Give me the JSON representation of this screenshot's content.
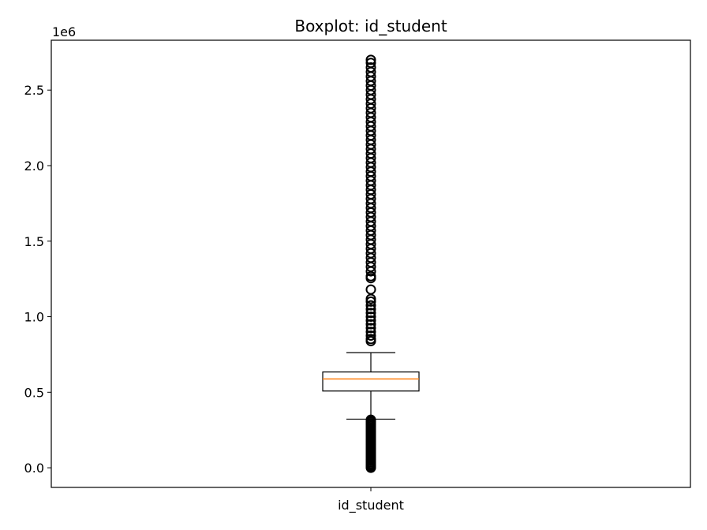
{
  "chart_data": {
    "type": "box",
    "title": "Boxplot: id_student",
    "xlabel": "",
    "ylabel": "",
    "categories": [
      "id_student"
    ],
    "offset_label": "1e6",
    "ylim": [
      -0.13,
      2.83
    ],
    "yticks": [
      0.0,
      0.5,
      1.0,
      1.5,
      2.0,
      2.5
    ],
    "ytick_labels": [
      "0.0",
      "0.5",
      "1.0",
      "1.5",
      "2.0",
      "2.5"
    ],
    "grid": false,
    "box": {
      "q1": 0.508,
      "median": 0.588,
      "q3": 0.634,
      "whisker_low": 0.322,
      "whisker_high": 0.762,
      "outliers_low": [
        0.0,
        0.008,
        0.016,
        0.025,
        0.035,
        0.045,
        0.055,
        0.065,
        0.075,
        0.085,
        0.095,
        0.105,
        0.115,
        0.125,
        0.135,
        0.145,
        0.155,
        0.165,
        0.175,
        0.185,
        0.195,
        0.205,
        0.215,
        0.225,
        0.235,
        0.245,
        0.255,
        0.265,
        0.275,
        0.285,
        0.295,
        0.305,
        0.312,
        0.318
      ],
      "outliers_high": [
        0.838,
        0.852,
        0.875,
        0.9,
        0.925,
        0.95,
        0.975,
        1.0,
        1.025,
        1.05,
        1.075,
        1.1,
        1.118,
        1.18,
        1.255,
        1.268,
        1.3,
        1.33,
        1.36,
        1.39,
        1.42,
        1.45,
        1.48,
        1.51,
        1.54,
        1.57,
        1.6,
        1.63,
        1.66,
        1.69,
        1.72,
        1.75,
        1.78,
        1.81,
        1.84,
        1.87,
        1.9,
        1.93,
        1.96,
        1.99,
        2.02,
        2.05,
        2.08,
        2.11,
        2.14,
        2.17,
        2.2,
        2.23,
        2.26,
        2.29,
        2.32,
        2.35,
        2.38,
        2.41,
        2.44,
        2.47,
        2.5,
        2.53,
        2.56,
        2.59,
        2.62,
        2.65,
        2.68,
        2.7
      ]
    },
    "colors": {
      "box": "#000000",
      "median": "#ff7f0e",
      "flier_edge": "#000000",
      "background": "#ffffff"
    }
  }
}
